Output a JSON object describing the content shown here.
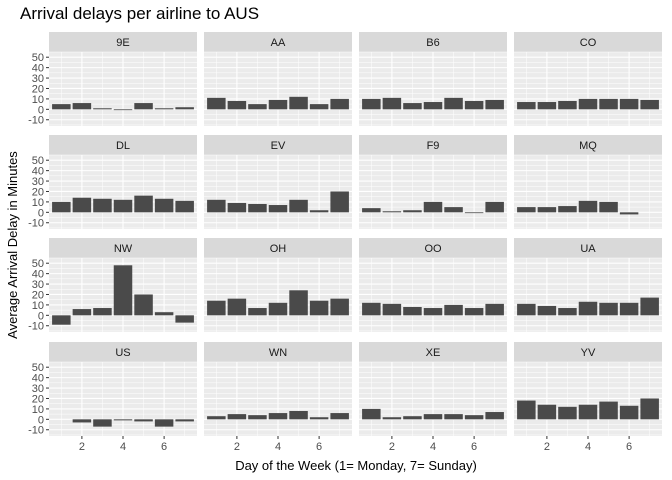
{
  "chart_data": {
    "type": "bar",
    "title": "Arrival delays per airline to AUS",
    "xlabel": "Day of the Week (1= Monday, 7= Sunday)",
    "ylabel": "Average Arrival Delay in Minutes",
    "x": [
      1,
      2,
      3,
      4,
      5,
      6,
      7
    ],
    "x_ticks": [
      2,
      4,
      6
    ],
    "y_ticks": [
      -10,
      0,
      10,
      20,
      30,
      40,
      50
    ],
    "ylim": [
      -16,
      55
    ],
    "xlim": [
      0.4,
      7.6
    ],
    "grid": true,
    "facet_layout": "4x4",
    "facets": [
      {
        "airline": "9E",
        "values": [
          5,
          6,
          1,
          0,
          6,
          1,
          2
        ]
      },
      {
        "airline": "AA",
        "values": [
          11,
          8,
          5,
          9,
          12,
          5,
          10
        ]
      },
      {
        "airline": "B6",
        "values": [
          10,
          11,
          6,
          7,
          11,
          8,
          9
        ]
      },
      {
        "airline": "CO",
        "values": [
          7,
          7,
          8,
          10,
          10,
          10,
          9
        ]
      },
      {
        "airline": "DL",
        "values": [
          10,
          14,
          13,
          12,
          16,
          13,
          11
        ]
      },
      {
        "airline": "EV",
        "values": [
          12,
          9,
          8,
          7,
          12,
          2,
          20
        ]
      },
      {
        "airline": "F9",
        "values": [
          4,
          1,
          2,
          10,
          5,
          0,
          10
        ]
      },
      {
        "airline": "MQ",
        "values": [
          5,
          5,
          6,
          11,
          10,
          -2,
          null
        ]
      },
      {
        "airline": "NW",
        "values": [
          -9,
          6,
          7,
          48,
          20,
          3,
          -7
        ]
      },
      {
        "airline": "OH",
        "values": [
          14,
          16,
          7,
          12,
          24,
          14,
          16
        ]
      },
      {
        "airline": "OO",
        "values": [
          12,
          11,
          8,
          7,
          10,
          7,
          11
        ]
      },
      {
        "airline": "UA",
        "values": [
          11,
          9,
          7,
          13,
          12,
          12,
          17
        ]
      },
      {
        "airline": "US",
        "values": [
          null,
          -3,
          -7,
          -1,
          -2,
          -7,
          -2
        ]
      },
      {
        "airline": "WN",
        "values": [
          3,
          5,
          4,
          6,
          8,
          2,
          6
        ]
      },
      {
        "airline": "XE",
        "values": [
          10,
          2,
          3,
          5,
          5,
          4,
          7
        ]
      },
      {
        "airline": "YV",
        "values": [
          18,
          14,
          12,
          14,
          17,
          13,
          20
        ]
      }
    ],
    "colors": {
      "bar": "#4a4a4a",
      "panel_bg": "#ebebeb",
      "strip_bg": "#d9d9d9",
      "grid_major": "#ffffff",
      "axis_text": "#4d4d4d"
    }
  }
}
